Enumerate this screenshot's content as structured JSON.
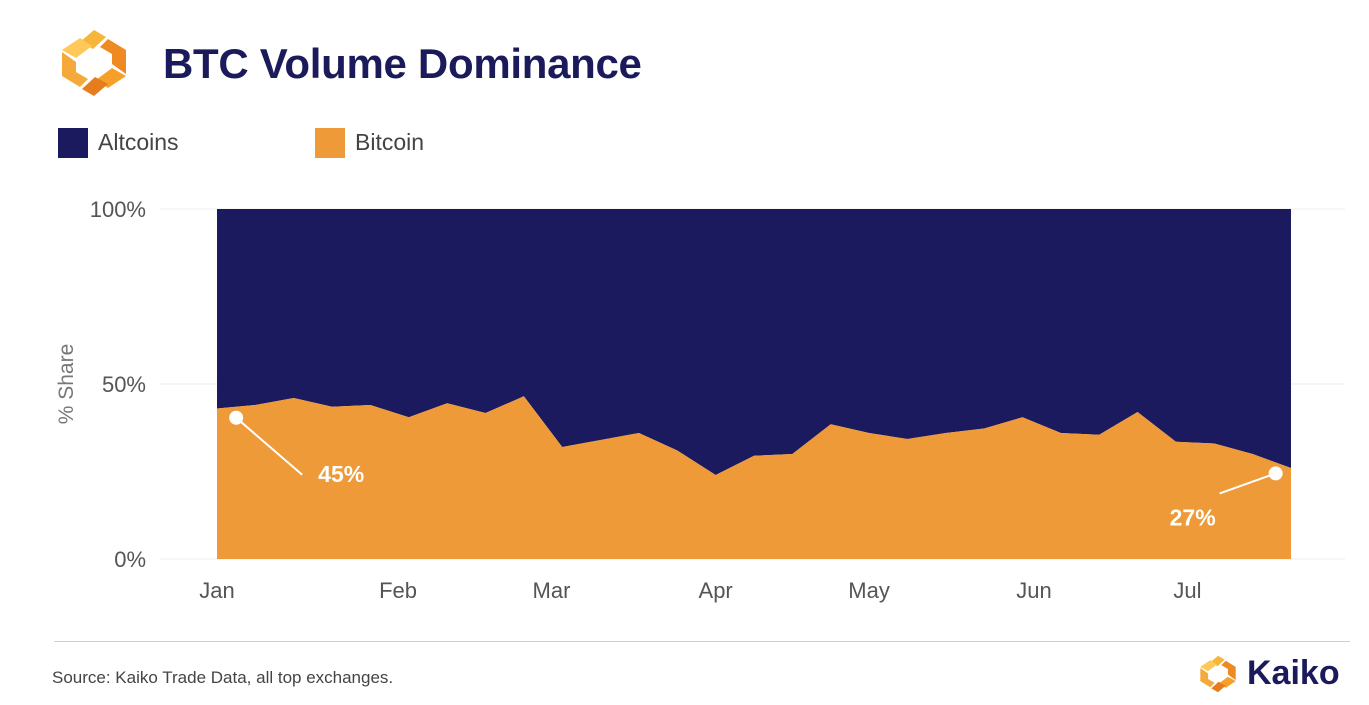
{
  "header": {
    "title": "BTC Volume Dominance",
    "logo_icon": "kaiko-logo-icon"
  },
  "legend": {
    "items": [
      {
        "label": "Altcoins",
        "color": "#1c1a5e"
      },
      {
        "label": "Bitcoin",
        "color": "#ee9a38"
      }
    ]
  },
  "chart_data": {
    "type": "area",
    "stacked": true,
    "ylabel": "% Share",
    "xlabel": "",
    "ylim": [
      0,
      100
    ],
    "yticks": [
      "0%",
      "50%",
      "100%"
    ],
    "ytick_values": [
      0,
      50,
      100
    ],
    "grid": true,
    "legend_position": "top-left",
    "x_labels": [
      "Jan",
      "Feb",
      "Mar",
      "Apr",
      "May",
      "Jun",
      "Jul"
    ],
    "x_label_positions_week": [
      0,
      4.72,
      8.72,
      13.0,
      17.0,
      21.3,
      25.3
    ],
    "weeks": [
      0,
      1,
      2,
      3,
      4,
      5,
      6,
      7,
      8,
      9,
      10,
      11,
      12,
      13,
      14,
      15,
      16,
      17,
      18,
      19,
      20,
      21,
      22,
      23,
      24,
      25,
      26,
      27,
      28
    ],
    "series": [
      {
        "name": "Bitcoin",
        "color": "#ee9a38",
        "values": [
          43,
          44,
          46,
          43.5,
          44,
          40.5,
          44.5,
          41.7,
          46.5,
          32,
          34,
          36,
          31,
          24,
          29.5,
          30,
          38.5,
          36,
          34.3,
          36,
          37.3,
          40.5,
          36,
          35.5,
          42,
          33.5,
          33,
          30,
          26
        ]
      },
      {
        "name": "Altcoins",
        "color": "#1c1a5e",
        "values": [
          57,
          56,
          54,
          56.5,
          56,
          59.5,
          55.5,
          58.3,
          53.5,
          68,
          66,
          64,
          69,
          76,
          70.5,
          70,
          61.5,
          64,
          65.7,
          64,
          62.7,
          59.5,
          64,
          64.5,
          58,
          66.5,
          67,
          70,
          74
        ]
      }
    ],
    "annotations": [
      {
        "text": "45%",
        "series": "Bitcoin",
        "week": 0.5
      },
      {
        "text": "27%",
        "series": "Bitcoin",
        "week": 27.6
      }
    ]
  },
  "footer": {
    "source": "Source: Kaiko Trade Data, all top exchanges.",
    "brand": "Kaiko"
  }
}
